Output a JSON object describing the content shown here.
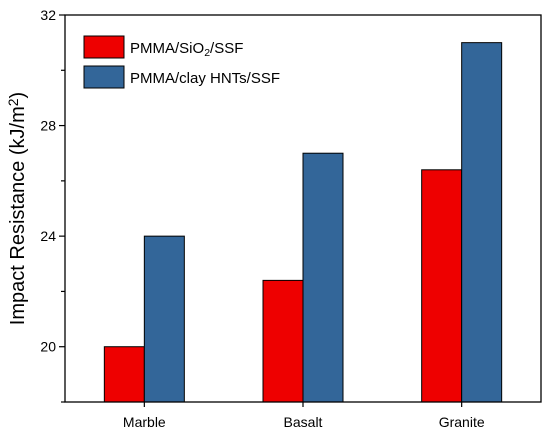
{
  "chart_data": {
    "type": "bar",
    "categories": [
      "Marble",
      "Basalt",
      "Granite"
    ],
    "series": [
      {
        "name": "PMMA/SiO₂/SSF",
        "values": [
          20.0,
          22.4,
          26.4
        ],
        "color": "#ee0000"
      },
      {
        "name": "PMMA/clay HNTs/SSF",
        "values": [
          24.0,
          27.0,
          31.0
        ],
        "color": "#336699"
      }
    ],
    "ylabel": "Impact Resistance (kJ/m²)",
    "xlabel": "",
    "ylim": [
      18,
      32
    ],
    "yticks": [
      20,
      24,
      28,
      32
    ],
    "y_minor_step": 2,
    "grid": false,
    "legend_position": "top-left"
  }
}
